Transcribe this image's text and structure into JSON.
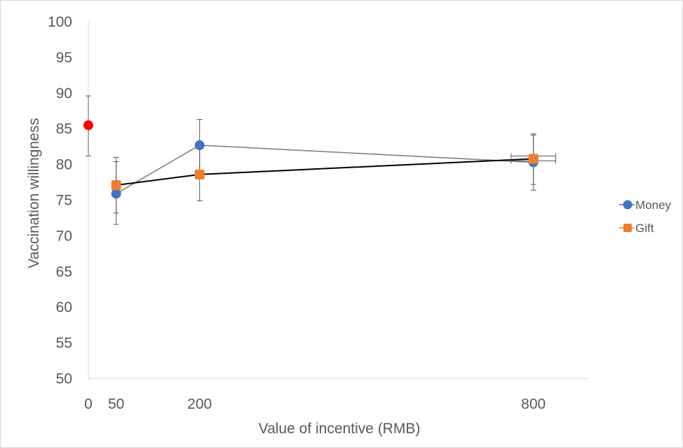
{
  "chart_data": {
    "type": "line",
    "xlabel": "Value of incentive (RMB)",
    "ylabel": "Vaccination willingness",
    "ylim": [
      50,
      100
    ],
    "xlim": [
      0,
      900
    ],
    "y_ticks": [
      "50",
      "55",
      "60",
      "65",
      "70",
      "75",
      "80",
      "85",
      "90",
      "95",
      "100"
    ],
    "x_ticks": [
      {
        "value": 0,
        "label": "0"
      },
      {
        "value": 50,
        "label": "50"
      },
      {
        "value": 200,
        "label": "200"
      },
      {
        "value": 800,
        "label": "800"
      }
    ],
    "baseline": {
      "x": 0,
      "y": 85.5,
      "err_low": 81.2,
      "err_high": 89.6,
      "color": "#ff0000"
    },
    "series": [
      {
        "name": "Money",
        "color": "#4472c4",
        "line_color": "#808080",
        "marker": "circle",
        "points": [
          {
            "x": 50,
            "y": 75.9,
            "err_low": 71.6,
            "err_high": 80.4
          },
          {
            "x": 200,
            "y": 82.7,
            "err_low": 78.4,
            "err_high": 86.3
          },
          {
            "x": 800,
            "y": 80.3,
            "err_low": 76.4,
            "err_high": 84.1
          }
        ]
      },
      {
        "name": "Gift",
        "color": "#ed7d31",
        "line_color": "#000000",
        "marker": "square",
        "points": [
          {
            "x": 50,
            "y": 77.1,
            "err_low": 73.2,
            "err_high": 81.0
          },
          {
            "x": 200,
            "y": 78.6,
            "err_low": 74.9,
            "err_high": 82.3
          },
          {
            "x": 800,
            "y": 80.8,
            "err_low": 77.2,
            "err_high": 84.3
          }
        ],
        "x_err": {
          "x": 800,
          "low": 760,
          "high": 840
        }
      }
    ],
    "legend_position": "right",
    "grid": false
  }
}
